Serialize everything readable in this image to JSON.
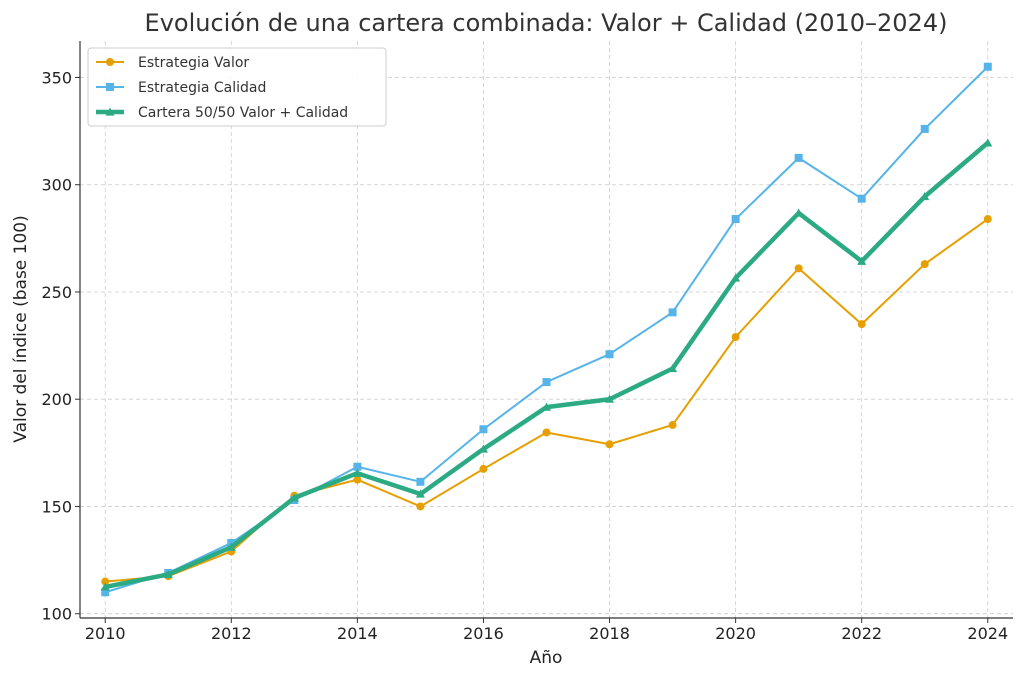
{
  "chart_data": {
    "type": "line",
    "title": "Evolución de una cartera combinada: Valor + Calidad (2010–2024)",
    "xlabel": "Año",
    "ylabel": "Valor del índice (base 100)",
    "x": [
      2010,
      2011,
      2012,
      2013,
      2014,
      2015,
      2016,
      2017,
      2018,
      2019,
      2020,
      2021,
      2022,
      2023,
      2024
    ],
    "xticks": [
      "2010",
      "2012",
      "2014",
      "2016",
      "2018",
      "2020",
      "2022",
      "2024"
    ],
    "yticks": [
      "100",
      "150",
      "200",
      "250",
      "300",
      "350"
    ],
    "xlim": [
      2009.6,
      2024.4
    ],
    "ylim": [
      98,
      367
    ],
    "grid": true,
    "legend_position": "top-left",
    "series": [
      {
        "name": "Estrategia Valor",
        "color": "#E69F00",
        "marker": "circle",
        "line_width": "normal",
        "values": [
          115,
          117.5,
          129,
          155,
          162.5,
          150,
          167.5,
          184.5,
          179,
          188,
          229,
          261,
          235,
          263,
          284
        ]
      },
      {
        "name": "Estrategia Calidad",
        "color": "#56B4E9",
        "marker": "square",
        "line_width": "normal",
        "values": [
          110,
          119,
          133,
          153,
          168.5,
          161.5,
          186,
          208,
          221,
          240.5,
          284,
          312.5,
          293.5,
          326,
          355
        ]
      },
      {
        "name": "Cartera 50/50 Valor + Calidad",
        "color": "#2BAA84",
        "marker": "triangle",
        "line_width": "thick",
        "values": [
          112.5,
          118.3,
          131,
          154,
          165.5,
          155.8,
          176.8,
          196.3,
          200,
          214.3,
          256.5,
          286.8,
          264.3,
          294.5,
          319.5
        ]
      }
    ]
  }
}
